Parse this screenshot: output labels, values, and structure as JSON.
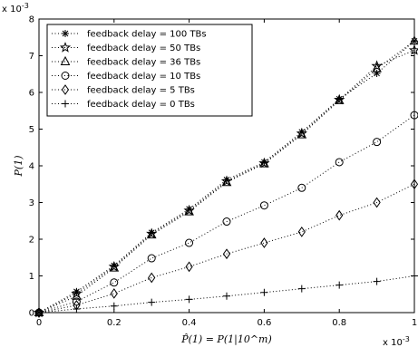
{
  "chart_data": {
    "type": "line",
    "title": "",
    "xlabel": "P̂(1) = P(1|10^m)",
    "ylabel": "P(1)",
    "x_exponent": "x 10",
    "x_exponent_power": "-3",
    "y_exponent": "x 10",
    "y_exponent_power": "-3",
    "xlim": [
      0,
      1
    ],
    "ylim": [
      0,
      8
    ],
    "xticks": [
      0,
      0.2,
      0.4,
      0.6,
      0.8,
      1
    ],
    "xtick_labels": [
      "0",
      "0.2",
      "0.4",
      "0.6",
      "0.8",
      "1"
    ],
    "yticks": [
      0,
      1,
      2,
      3,
      4,
      5,
      6,
      7,
      8
    ],
    "ytick_labels": [
      "0",
      "1",
      "2",
      "3",
      "4",
      "5",
      "6",
      "7",
      "8"
    ],
    "grid": false,
    "legend_position": "top-left",
    "x": [
      0,
      0.1,
      0.2,
      0.3,
      0.4,
      0.5,
      0.6,
      0.7,
      0.8,
      0.9,
      1.0
    ],
    "series": [
      {
        "name": "feedback delay = 100 TBs",
        "marker": "asterisk",
        "values": [
          0,
          0.57,
          1.28,
          2.18,
          2.82,
          3.62,
          4.1,
          4.92,
          5.82,
          6.52,
          7.4
        ]
      },
      {
        "name": "feedback delay = 50 TBs",
        "marker": "star",
        "values": [
          0,
          0.52,
          1.25,
          2.15,
          2.78,
          3.58,
          4.07,
          4.88,
          5.8,
          6.72,
          7.15
        ]
      },
      {
        "name": "feedback delay = 36 TBs",
        "marker": "triangle",
        "values": [
          0,
          0.45,
          1.22,
          2.12,
          2.75,
          3.55,
          4.06,
          4.85,
          5.78,
          6.65,
          7.4
        ]
      },
      {
        "name": "feedback delay = 10 TBs",
        "marker": "circle",
        "values": [
          0,
          0.3,
          0.82,
          1.48,
          1.9,
          2.48,
          2.92,
          3.4,
          4.1,
          4.65,
          5.38
        ]
      },
      {
        "name": "feedback delay = 5 TBs",
        "marker": "diamond",
        "values": [
          0,
          0.2,
          0.52,
          0.95,
          1.25,
          1.6,
          1.9,
          2.2,
          2.65,
          3.0,
          3.5
        ]
      },
      {
        "name": "feedback delay = 0 TBs",
        "marker": "plus",
        "values": [
          0,
          0.1,
          0.18,
          0.28,
          0.36,
          0.45,
          0.55,
          0.65,
          0.75,
          0.85,
          1.0
        ]
      }
    ]
  }
}
